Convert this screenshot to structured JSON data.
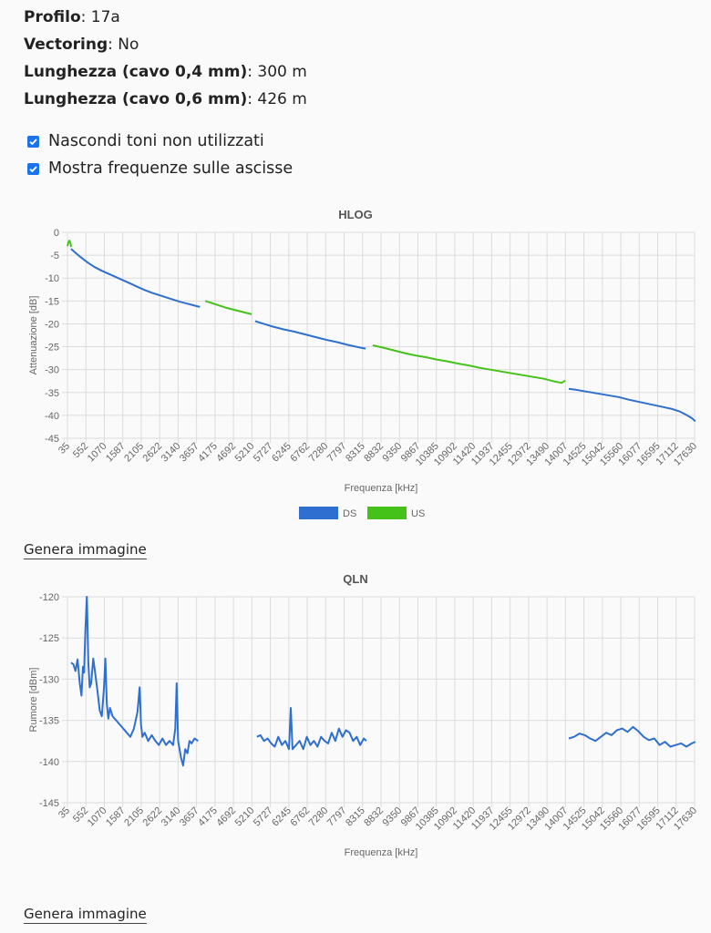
{
  "info": [
    {
      "label": "Profilo",
      "value": ": 17a"
    },
    {
      "label": "Vectoring",
      "value": ": No"
    },
    {
      "label": "Lunghezza (cavo 0,4 mm)",
      "value": ": 300 m"
    },
    {
      "label": "Lunghezza (cavo 0,6 mm)",
      "value": ": 426 m"
    }
  ],
  "options": [
    {
      "label": "Nascondi toni non utilizzati",
      "checked": true
    },
    {
      "label": "Mostra frequenze sulle ascisse",
      "checked": true
    }
  ],
  "generate_label": "Genera immagine",
  "chart_data": [
    {
      "type": "line",
      "title": "HLOG",
      "xlabel": "Frequenza [kHz]",
      "ylabel": "Attenuazione [dB]",
      "ylim": [
        -45,
        0
      ],
      "yticks": [
        "0",
        "-5",
        "-10",
        "-15",
        "-20",
        "-25",
        "-30",
        "-35",
        "-40",
        "-45"
      ],
      "categories": [
        "35",
        "552",
        "1070",
        "1587",
        "2105",
        "2622",
        "3140",
        "3657",
        "4175",
        "4692",
        "5210",
        "5727",
        "6245",
        "6762",
        "7280",
        "7797",
        "8315",
        "8832",
        "9350",
        "9867",
        "10385",
        "10902",
        "11420",
        "11937",
        "12455",
        "12972",
        "13490",
        "14007",
        "14525",
        "15042",
        "15560",
        "16077",
        "16595",
        "17112",
        "17630"
      ],
      "grid": true,
      "legend": "bottom",
      "series": [
        {
          "name": "DS",
          "color": "#2f6fd0",
          "segments": [
            {
              "x": [
                138,
                250,
                400,
                600,
                800,
                1000,
                1200,
                1400,
                1600,
                1800,
                2000,
                2200,
                2400,
                2600,
                2800,
                3000,
                3200,
                3400,
                3600,
                3750
              ],
              "y": [
                -3.6,
                -4.4,
                -5.4,
                -6.6,
                -7.6,
                -8.4,
                -9.1,
                -9.8,
                -10.5,
                -11.2,
                -11.9,
                -12.6,
                -13.2,
                -13.7,
                -14.2,
                -14.7,
                -15.2,
                -15.6,
                -16.0,
                -16.3
              ]
            },
            {
              "x": [
                5300,
                5500,
                5800,
                6100,
                6400,
                6700,
                7000,
                7300,
                7600,
                7900,
                8200,
                8400
              ],
              "y": [
                -19.4,
                -19.9,
                -20.6,
                -21.2,
                -21.7,
                -22.3,
                -22.9,
                -23.5,
                -24.0,
                -24.6,
                -25.1,
                -25.4
              ]
            },
            {
              "x": [
                14100,
                14300,
                14600,
                14900,
                15200,
                15500,
                15800,
                16100,
                16400,
                16700,
                17000,
                17200,
                17400,
                17550,
                17650
              ],
              "y": [
                -34.2,
                -34.4,
                -34.8,
                -35.2,
                -35.6,
                -36.0,
                -36.6,
                -37.1,
                -37.6,
                -38.1,
                -38.6,
                -39.1,
                -39.9,
                -40.6,
                -41.3
              ]
            }
          ]
        },
        {
          "name": "US",
          "color": "#44c21a",
          "segments": [
            {
              "x": [
                35,
                60,
                90,
                120,
                138
              ],
              "y": [
                -3.0,
                -2.2,
                -1.8,
                -2.4,
                -3.2
              ]
            },
            {
              "x": [
                3900,
                4100,
                4300,
                4500,
                4700,
                4900,
                5100,
                5200
              ],
              "y": [
                -15.0,
                -15.5,
                -16.0,
                -16.5,
                -16.9,
                -17.3,
                -17.7,
                -17.9
              ]
            },
            {
              "x": [
                8600,
                8900,
                9200,
                9500,
                9800,
                10100,
                10400,
                10700,
                11000,
                11300,
                11600,
                11900,
                12200,
                12500,
                12800,
                13100,
                13400,
                13700,
                13900,
                14000
              ],
              "y": [
                -24.7,
                -25.2,
                -25.8,
                -26.4,
                -26.9,
                -27.3,
                -27.8,
                -28.2,
                -28.7,
                -29.1,
                -29.6,
                -30.0,
                -30.4,
                -30.8,
                -31.2,
                -31.6,
                -32.0,
                -32.6,
                -32.9,
                -32.4
              ]
            }
          ]
        }
      ]
    },
    {
      "type": "line",
      "title": "QLN",
      "xlabel": "Frequenza [kHz]",
      "ylabel": "Rumore [dBm]",
      "ylim": [
        -145,
        -120
      ],
      "yticks": [
        "-120",
        "-125",
        "-130",
        "-135",
        "-140",
        "-145"
      ],
      "categories": [
        "35",
        "552",
        "1070",
        "1587",
        "2105",
        "2622",
        "3140",
        "3657",
        "4175",
        "4692",
        "5210",
        "5727",
        "6245",
        "6762",
        "7280",
        "7797",
        "8315",
        "8832",
        "9350",
        "9867",
        "10385",
        "10902",
        "11420",
        "11937",
        "12455",
        "12972",
        "13490",
        "14007",
        "14525",
        "15042",
        "15560",
        "16077",
        "16595",
        "17112",
        "17630"
      ],
      "grid": true,
      "series": [
        {
          "name": "DS",
          "color": "#2f6fd0",
          "segments": [
            {
              "x": [
                138,
                200,
                260,
                320,
                380,
                430,
                470,
                500,
                540,
                580,
                620,
                660,
                700,
                760,
                820,
                880,
                940,
                1000,
                1060,
                1100,
                1140,
                1180,
                1230,
                1300,
                1400,
                1500,
                1600,
                1700,
                1800,
                1900,
                2000,
                2060,
                2100,
                2140,
                2200,
                2300,
                2400,
                2500,
                2600,
                2700,
                2800,
                2900,
                3000,
                3060,
                3100,
                3140,
                3180,
                3220,
                3280,
                3340,
                3400,
                3460,
                3520,
                3600,
                3700
              ],
              "y": [
                -128.0,
                -128.2,
                -129.0,
                -127.6,
                -130.5,
                -132.0,
                -128.5,
                -129.2,
                -124.0,
                -120.0,
                -128.0,
                -131.0,
                -130.5,
                -127.5,
                -129.5,
                -131.5,
                -133.8,
                -134.5,
                -131.0,
                -127.5,
                -133.0,
                -134.8,
                -133.5,
                -134.5,
                -135.0,
                -135.5,
                -136.0,
                -136.5,
                -137.0,
                -136.0,
                -134.0,
                -131.0,
                -135.5,
                -137.0,
                -136.5,
                -137.5,
                -136.8,
                -137.5,
                -138.0,
                -137.2,
                -138.0,
                -137.5,
                -138.0,
                -136.0,
                -130.5,
                -137.5,
                -138.5,
                -139.5,
                -140.5,
                -138.5,
                -139.0,
                -137.5,
                -137.8,
                -137.2,
                -137.5
              ]
            },
            {
              "x": [
                5350,
                5450,
                5550,
                5650,
                5750,
                5850,
                5950,
                6050,
                6150,
                6250,
                6300,
                6350,
                6450,
                6550,
                6650,
                6750,
                6850,
                6950,
                7050,
                7150,
                7250,
                7350,
                7450,
                7550,
                7650,
                7750,
                7850,
                7950,
                8050,
                8150,
                8250,
                8350,
                8420
              ],
              "y": [
                -137.0,
                -136.8,
                -137.5,
                -137.2,
                -137.8,
                -138.2,
                -137.0,
                -138.0,
                -137.5,
                -138.5,
                -133.5,
                -138.5,
                -138.0,
                -137.5,
                -138.5,
                -137.0,
                -138.0,
                -137.5,
                -138.2,
                -137.0,
                -137.5,
                -137.8,
                -136.5,
                -137.5,
                -136.0,
                -137.0,
                -136.2,
                -136.5,
                -137.5,
                -137.0,
                -138.0,
                -137.2,
                -137.5
              ]
            },
            {
              "x": [
                14100,
                14250,
                14400,
                14550,
                14700,
                14850,
                15000,
                15150,
                15300,
                15450,
                15600,
                15750,
                15900,
                16050,
                16200,
                16350,
                16500,
                16650,
                16800,
                16950,
                17100,
                17250,
                17400,
                17550,
                17650
              ],
              "y": [
                -137.2,
                -137.0,
                -136.6,
                -136.8,
                -137.2,
                -137.5,
                -137.0,
                -136.5,
                -136.8,
                -136.2,
                -136.0,
                -136.4,
                -135.8,
                -136.3,
                -137.0,
                -137.4,
                -137.2,
                -138.0,
                -137.6,
                -138.2,
                -138.0,
                -137.8,
                -138.2,
                -137.8,
                -137.6
              ]
            }
          ]
        }
      ]
    }
  ]
}
